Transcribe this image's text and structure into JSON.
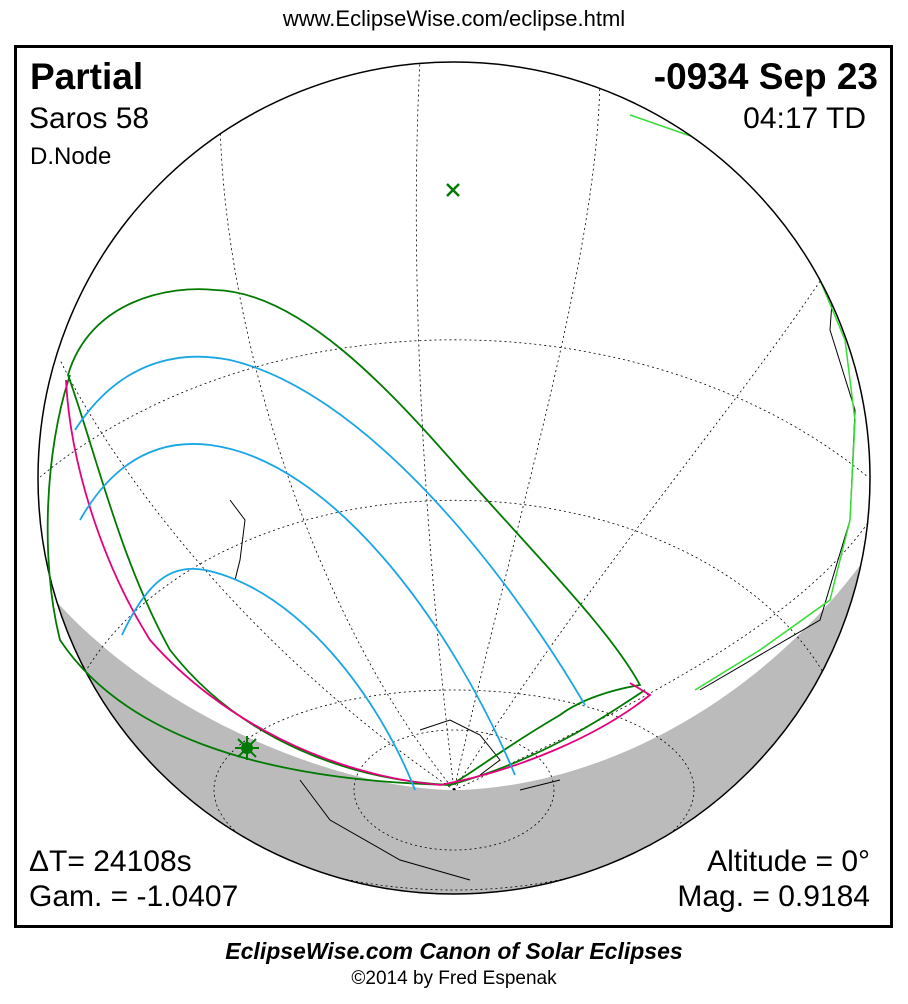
{
  "header": {
    "url": "www.EclipseWise.com/eclipse.html"
  },
  "eclipse": {
    "type": "Partial",
    "saros": "Saros  58",
    "node": "D.Node",
    "date": "-0934 Sep 23",
    "time": "04:17 TD",
    "delta_t": "ΔT=  24108s",
    "gamma": "Gam. = -1.0407",
    "altitude": "Altitude =  0°",
    "magnitude": "Mag. = 0.9184"
  },
  "footer": {
    "title": "EclipseWise.com Canon of Solar Eclipses",
    "copyright": "©2014 by Fred Espenak"
  },
  "colors": {
    "limits": "#007a00",
    "magnitude_lines": "#1aa6e6",
    "rise_set": "#e6007e",
    "coast_highlight": "#33dd33",
    "night_shade": "#bbbbbb"
  },
  "markers": {
    "greatest_eclipse": "star-icon",
    "pole": "x-icon"
  }
}
